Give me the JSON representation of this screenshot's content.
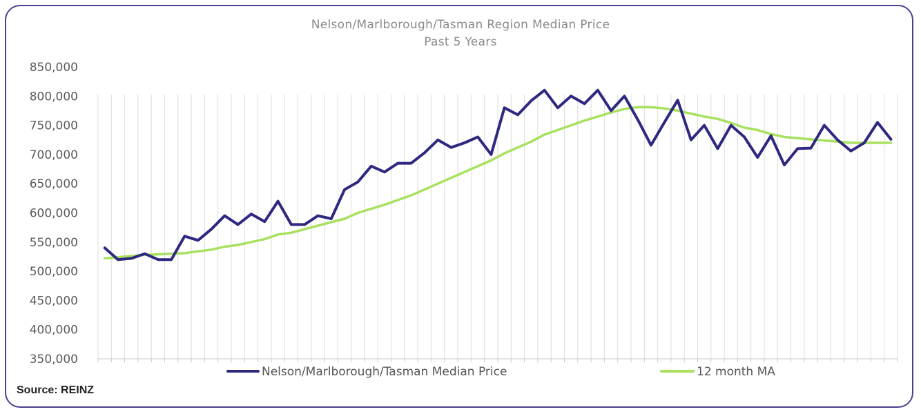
{
  "source": "Source: REINZ",
  "chart_data": {
    "type": "line",
    "title": "Nelson/Marlborough/Tasman  Region Median Price",
    "subtitle": "Past  5 Years",
    "xlabel": "",
    "ylabel": "",
    "ylim": [
      350000,
      850000
    ],
    "yticks": [
      350000,
      400000,
      450000,
      500000,
      550000,
      600000,
      650000,
      700000,
      750000,
      800000,
      850000
    ],
    "ytick_labels": [
      "350,000",
      "400,000",
      "450,000",
      "500,000",
      "550,000",
      "600,000",
      "650,000",
      "700,000",
      "750,000",
      "800,000",
      "850,000"
    ],
    "grid": "vertical lines at each month",
    "legend_position": "bottom",
    "x": [
      1,
      2,
      3,
      4,
      5,
      6,
      7,
      8,
      9,
      10,
      11,
      12,
      13,
      14,
      15,
      16,
      17,
      18,
      19,
      20,
      21,
      22,
      23,
      24,
      25,
      26,
      27,
      28,
      29,
      30,
      31,
      32,
      33,
      34,
      35,
      36,
      37,
      38,
      39,
      40,
      41,
      42,
      43,
      44,
      45,
      46,
      47,
      48,
      49,
      50,
      51,
      52,
      53,
      54,
      55,
      56,
      57,
      58,
      59,
      60
    ],
    "series": [
      {
        "name": "Nelson/Marlborough/Tasman Median Price",
        "color": "#2e2880",
        "values": [
          540000,
          520000,
          522000,
          530000,
          520000,
          520000,
          560000,
          553000,
          572000,
          595000,
          580000,
          598000,
          585000,
          620000,
          580000,
          580000,
          595000,
          590000,
          640000,
          653000,
          680000,
          670000,
          685000,
          685000,
          703000,
          725000,
          712000,
          720000,
          730000,
          700000,
          780000,
          768000,
          792000,
          810000,
          780000,
          800000,
          787000,
          810000,
          775000,
          800000,
          760000,
          716000,
          755000,
          793000,
          725000,
          750000,
          710000,
          750000,
          730000,
          695000,
          732000,
          682000,
          710000,
          711000,
          750000,
          725000,
          706000,
          720000,
          755000,
          726000
        ]
      },
      {
        "name": "12 month MA",
        "color": "#a8e05f",
        "values": [
          522000,
          524000,
          526000,
          528000,
          529000,
          530000,
          531000,
          534000,
          537000,
          542000,
          545000,
          550000,
          555000,
          563000,
          566000,
          572000,
          578000,
          584000,
          590000,
          600000,
          607000,
          614000,
          622000,
          630000,
          640000,
          650000,
          660000,
          670000,
          680000,
          690000,
          702000,
          712000,
          722000,
          734000,
          742000,
          750000,
          758000,
          765000,
          772000,
          778000,
          781000,
          781000,
          779000,
          775000,
          770000,
          765000,
          761000,
          754000,
          746000,
          742000,
          735000,
          730000,
          728000,
          726000,
          724000,
          722000,
          720000,
          720000,
          720000,
          720000
        ]
      }
    ]
  }
}
